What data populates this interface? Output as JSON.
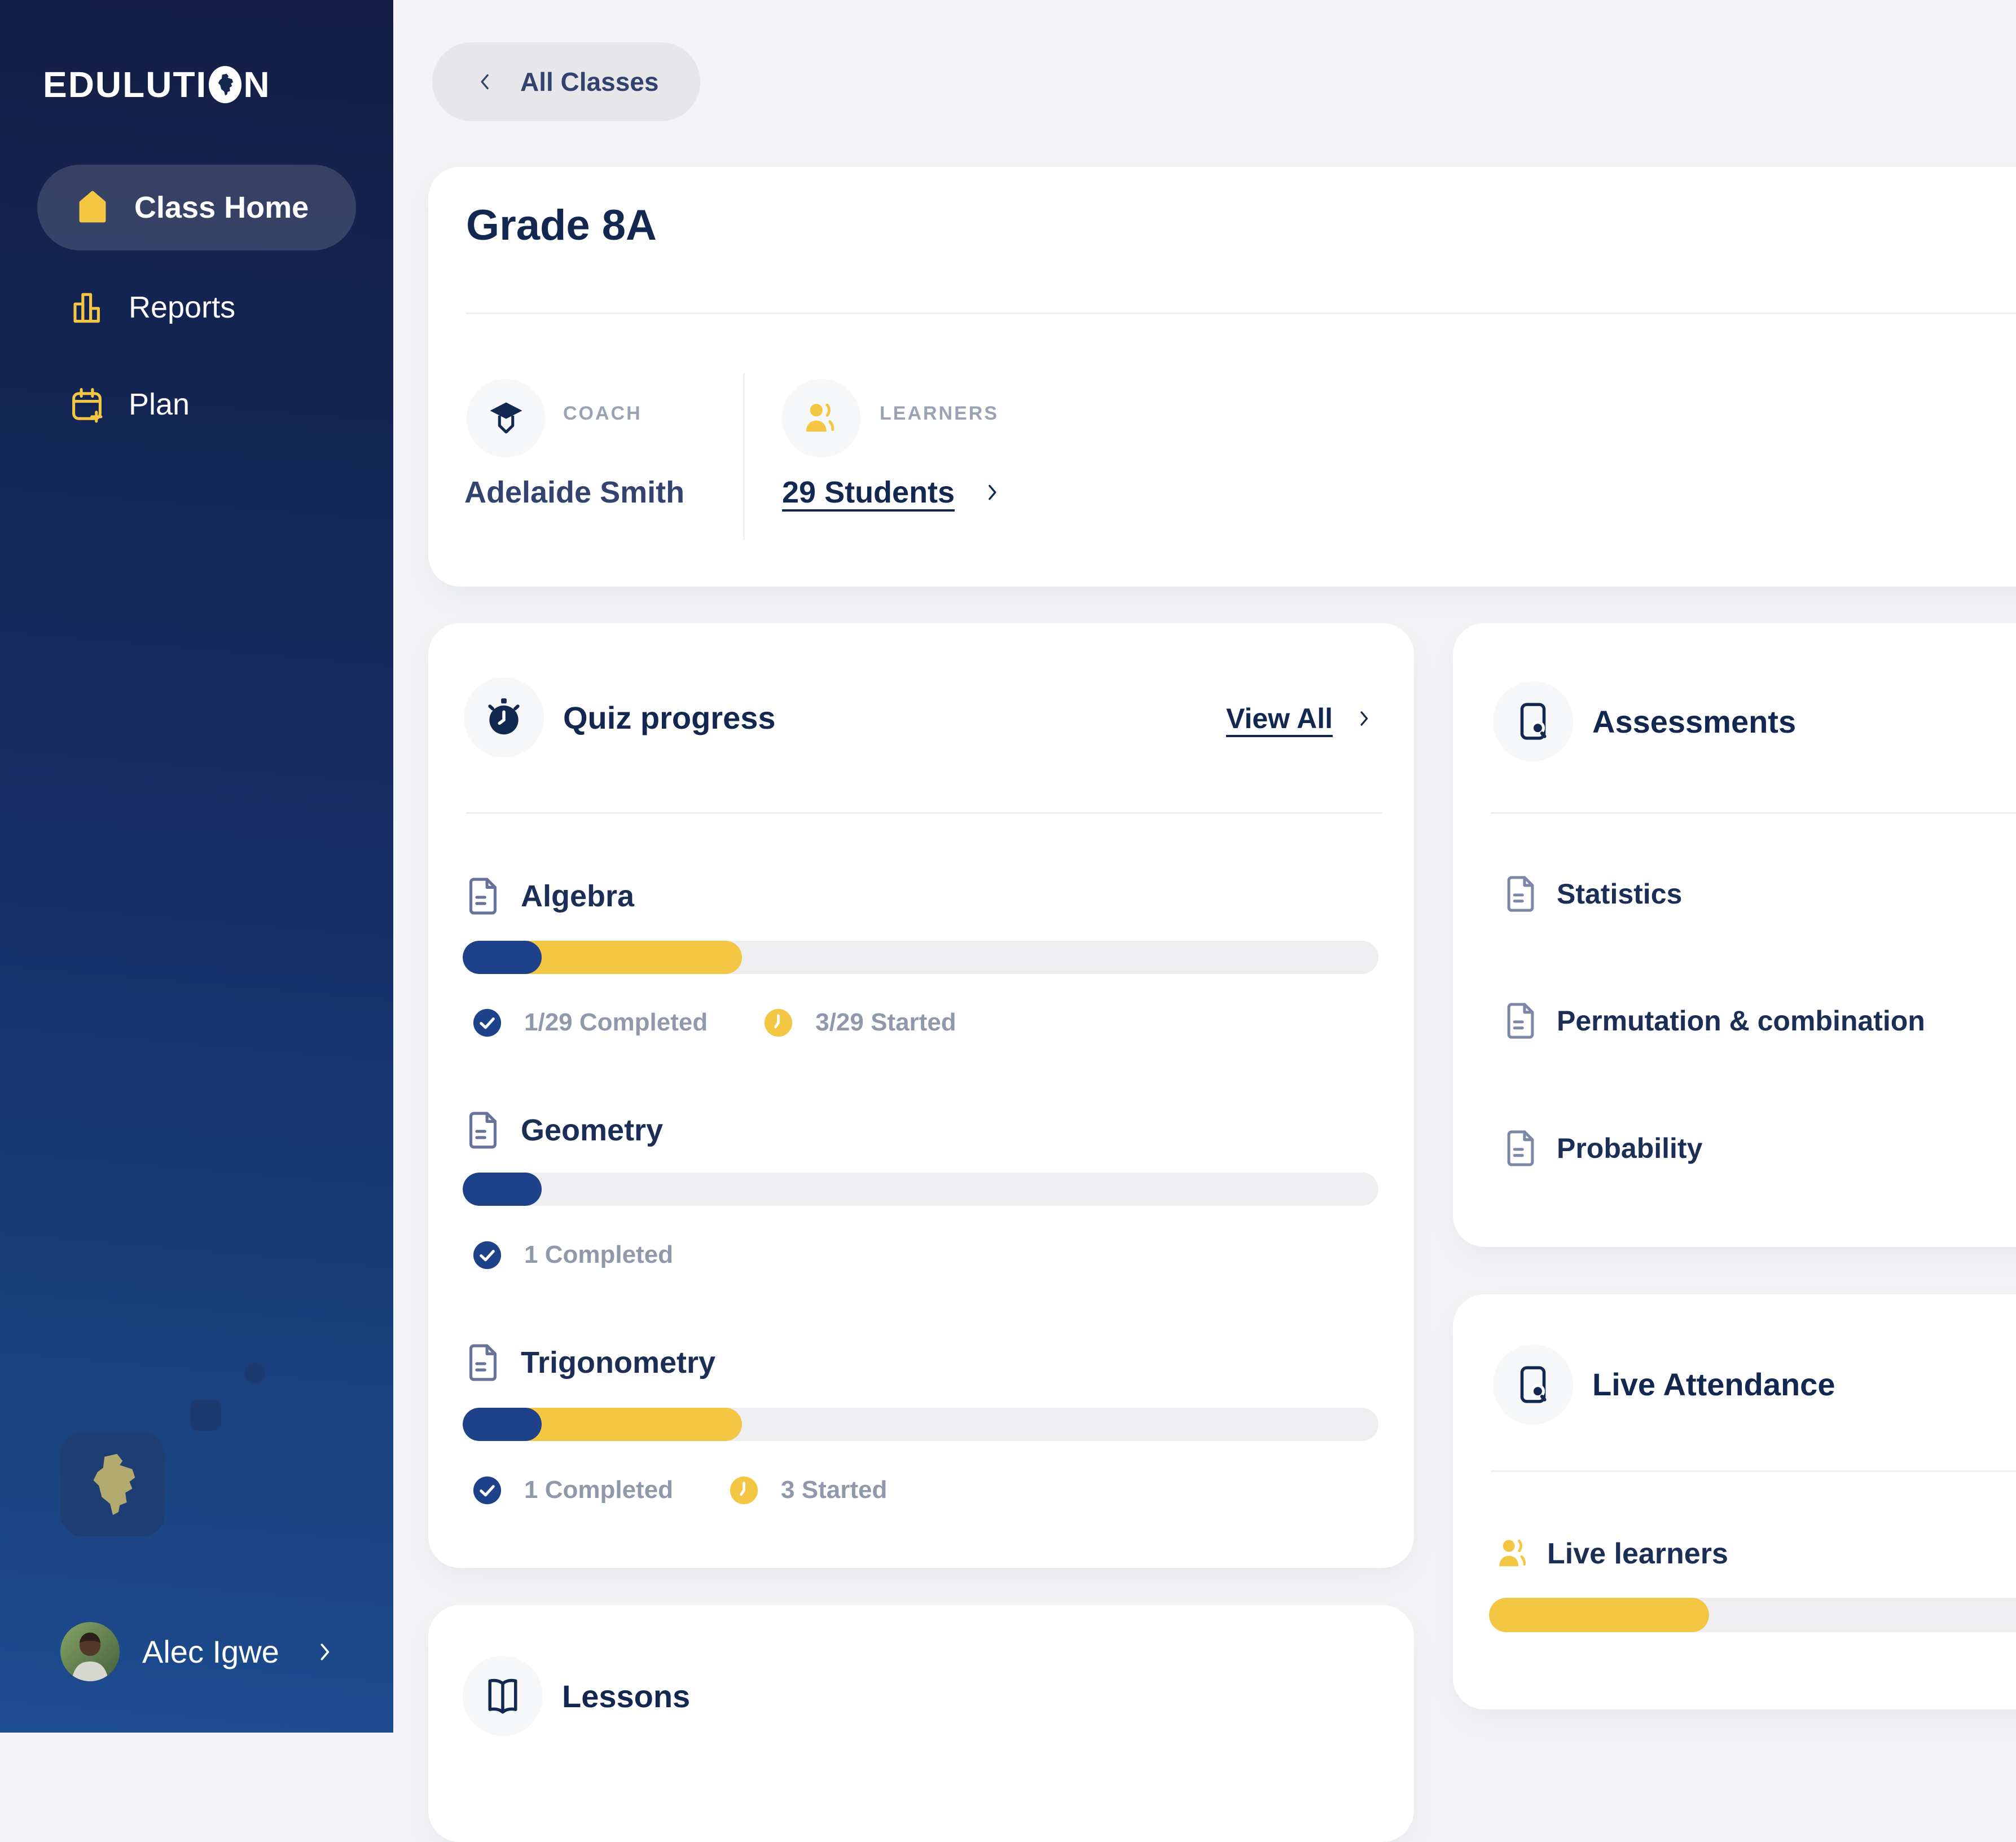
{
  "app": {
    "logo_part1": "EDULUTI",
    "logo_part2": "N"
  },
  "colors": {
    "yellow": "#F3C644",
    "navy": "#132850",
    "bar_blue": "#1D4289",
    "olive": "#B3AA70"
  },
  "sidebar": {
    "nav": [
      {
        "label": "Class Home"
      },
      {
        "label": "Reports"
      },
      {
        "label": "Plan"
      }
    ],
    "user_name": "Alec Igwe"
  },
  "header": {
    "back_label": "All Classes"
  },
  "class_card": {
    "title": "Grade 8A",
    "coach_label": "COACH",
    "coach_name": "Adelaide Smith",
    "learners_label": "LEARNERS",
    "learners_link": "29 Students"
  },
  "quiz_card": {
    "title": "Quiz progress",
    "view_all": "View All",
    "topics": [
      {
        "name": "Algebra",
        "completed_pct": 8.6,
        "started_pct": 30.5,
        "completed_text": "1/29 Completed",
        "started_text": "3/29 Started"
      },
      {
        "name": "Geometry",
        "completed_pct": 8.6,
        "started_pct": 0,
        "completed_text": "1 Completed",
        "started_text": ""
      },
      {
        "name": "Trigonometry",
        "completed_pct": 8.6,
        "started_pct": 30.5,
        "completed_text": "1 Completed",
        "started_text": "3 Started"
      }
    ]
  },
  "assessments_card": {
    "title": "Assessments",
    "items": [
      "Statistics",
      "Permutation & combination",
      "Probability"
    ]
  },
  "attendance_card": {
    "title": "Live Attendance",
    "row_label": "Live learners",
    "live_pct": 37.6
  },
  "lessons_card": {
    "title": "Lessons"
  }
}
